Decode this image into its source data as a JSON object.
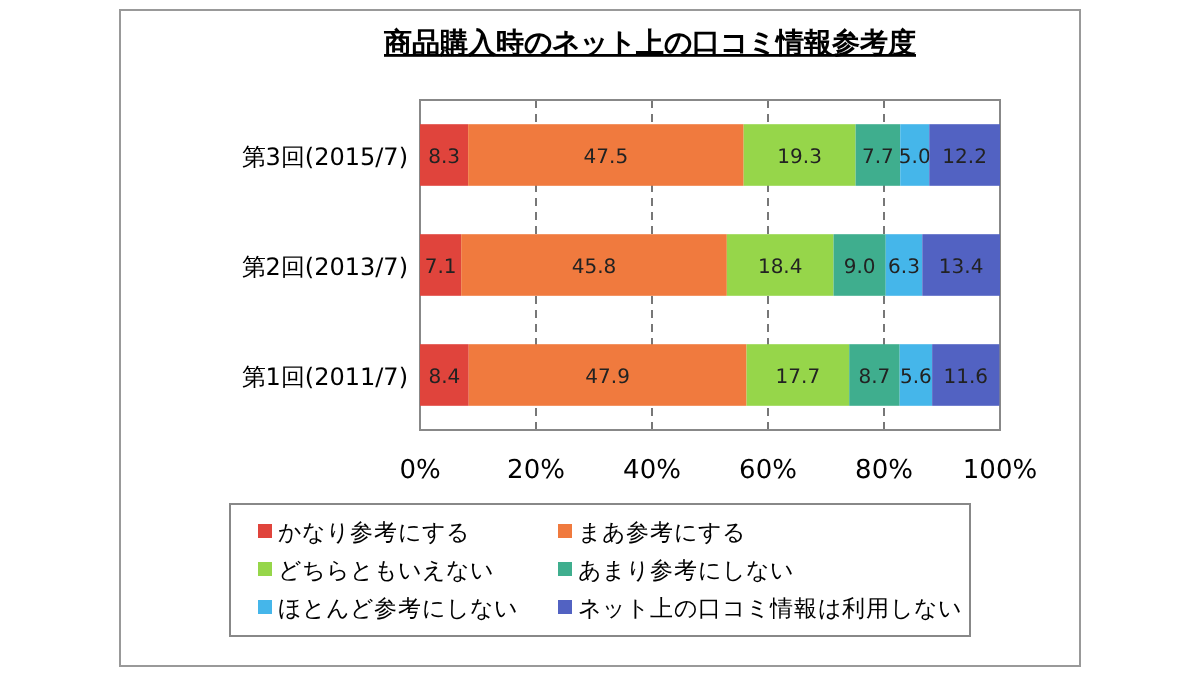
{
  "chart_data": {
    "type": "bar",
    "orientation": "horizontal",
    "stacked": true,
    "title": "商品購入時のネット上の口コミ情報参考度",
    "categories": [
      "第3回(2015/7)",
      "第2回(2013/7)",
      "第1回(2011/7)"
    ],
    "series": [
      {
        "name": "かなり参考にする",
        "color": "#e0443c",
        "values": [
          8.3,
          7.1,
          8.4
        ]
      },
      {
        "name": "まあ参考にする",
        "color": "#f07a3e",
        "values": [
          47.5,
          45.8,
          47.9
        ]
      },
      {
        "name": "どちらともいえない",
        "color": "#96d64a",
        "values": [
          19.3,
          18.4,
          17.7
        ]
      },
      {
        "name": "あまり参考にしない",
        "color": "#3fae8e",
        "values": [
          7.7,
          9.0,
          8.7
        ],
        "value_labels": [
          "7.7",
          "9.0",
          "8.7"
        ]
      },
      {
        "name": "ほとんど参考にしない",
        "color": "#45b6ea",
        "values": [
          5.0,
          6.3,
          5.6
        ],
        "value_labels": [
          "5.0",
          "6.3",
          "5.6"
        ]
      },
      {
        "name": "ネット上の口コミ情報は利用しない",
        "color": "#5262c2",
        "values": [
          12.2,
          13.4,
          11.6
        ]
      }
    ],
    "xlim": [
      0,
      100
    ],
    "xticks": [
      {
        "value": 0,
        "label": "0%"
      },
      {
        "value": 20,
        "label": "20%"
      },
      {
        "value": 40,
        "label": "40%"
      },
      {
        "value": 60,
        "label": "60%"
      },
      {
        "value": 80,
        "label": "80%"
      },
      {
        "value": 100,
        "label": "100%"
      }
    ],
    "grid": "x",
    "legend": "bottom",
    "data_labels": true
  }
}
